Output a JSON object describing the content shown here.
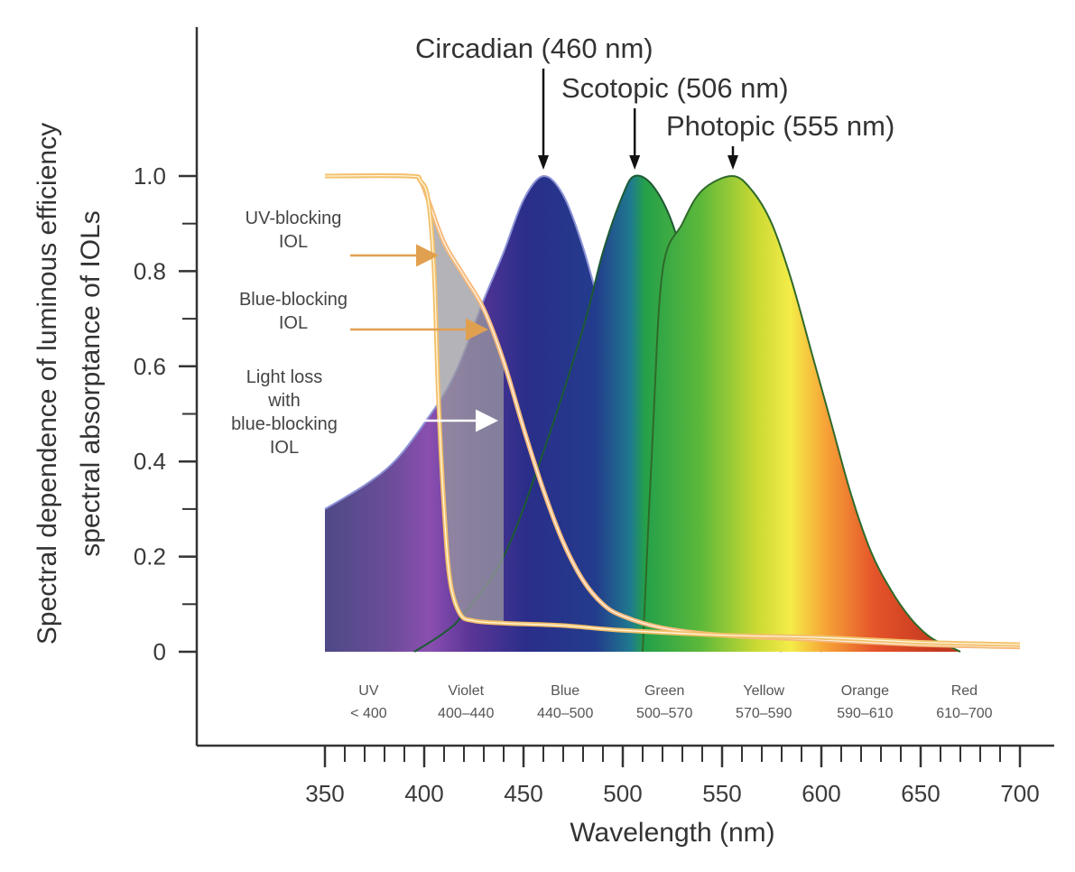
{
  "chart_data": {
    "type": "area",
    "xlabel": "Wavelength (nm)",
    "ylabel_lines": [
      "Spectral dependence of luminous efficiency",
      "spectral absorptance of IOLs"
    ],
    "xlim": [
      350,
      700
    ],
    "ylim": [
      0,
      1.0
    ],
    "x_ticks": [
      350,
      400,
      450,
      500,
      550,
      600,
      650,
      700
    ],
    "x_minor_step": 10,
    "y_ticks": [
      {
        "value": 0,
        "label": "0"
      },
      {
        "value": 0.2,
        "label": "0.2"
      },
      {
        "value": 0.4,
        "label": "0.4"
      },
      {
        "value": 0.6,
        "label": "0.6"
      },
      {
        "value": 0.8,
        "label": "0.8"
      },
      {
        "value": 1.0,
        "label": "1.0"
      }
    ],
    "y_minor_step": 0.1,
    "peaks": [
      {
        "label": "Circadian (460 nm)",
        "peak_nm": 460
      },
      {
        "label": "Scotopic (506 nm)",
        "peak_nm": 506
      },
      {
        "label": "Photopic (555 nm)",
        "peak_nm": 555
      }
    ],
    "series": [
      {
        "id": "circadian",
        "points": [
          [
            350,
            0.3
          ],
          [
            370,
            0.35
          ],
          [
            385,
            0.4
          ],
          [
            400,
            0.48
          ],
          [
            415,
            0.58
          ],
          [
            430,
            0.74
          ],
          [
            440,
            0.84
          ],
          [
            450,
            0.95
          ],
          [
            460,
            1.0
          ],
          [
            470,
            0.96
          ],
          [
            480,
            0.85
          ],
          [
            490,
            0.7
          ],
          [
            500,
            0.55
          ],
          [
            510,
            0.4
          ],
          [
            520,
            0.28
          ],
          [
            530,
            0.18
          ],
          [
            540,
            0.12
          ],
          [
            550,
            0.07
          ],
          [
            560,
            0.04
          ],
          [
            570,
            0.02
          ],
          [
            580,
            0.0
          ]
        ]
      },
      {
        "id": "scotopic",
        "points": [
          [
            395,
            0.0
          ],
          [
            410,
            0.04
          ],
          [
            420,
            0.08
          ],
          [
            440,
            0.2
          ],
          [
            460,
            0.42
          ],
          [
            480,
            0.68
          ],
          [
            490,
            0.84
          ],
          [
            500,
            0.96
          ],
          [
            506,
            1.0
          ],
          [
            515,
            0.98
          ],
          [
            525,
            0.9
          ],
          [
            535,
            0.75
          ],
          [
            545,
            0.58
          ],
          [
            555,
            0.42
          ],
          [
            565,
            0.28
          ],
          [
            575,
            0.17
          ],
          [
            585,
            0.09
          ],
          [
            595,
            0.03
          ],
          [
            600,
            0.0
          ]
        ]
      },
      {
        "id": "photopic",
        "points": [
          [
            510,
            0.0
          ],
          [
            515,
            0.45
          ],
          [
            520,
            0.8
          ],
          [
            530,
            0.9
          ],
          [
            540,
            0.97
          ],
          [
            555,
            1.0
          ],
          [
            565,
            0.97
          ],
          [
            575,
            0.9
          ],
          [
            585,
            0.78
          ],
          [
            595,
            0.63
          ],
          [
            605,
            0.48
          ],
          [
            615,
            0.33
          ],
          [
            625,
            0.21
          ],
          [
            635,
            0.13
          ],
          [
            645,
            0.07
          ],
          [
            655,
            0.03
          ],
          [
            665,
            0.01
          ],
          [
            670,
            0.0
          ]
        ]
      },
      {
        "id": "uv-blocking-iol",
        "points": [
          [
            350,
            1.0
          ],
          [
            392,
            1.0
          ],
          [
            398,
            0.99
          ],
          [
            402,
            0.95
          ],
          [
            405,
            0.8
          ],
          [
            407,
            0.55
          ],
          [
            410,
            0.3
          ],
          [
            413,
            0.15
          ],
          [
            418,
            0.08
          ],
          [
            425,
            0.065
          ],
          [
            440,
            0.06
          ],
          [
            470,
            0.055
          ],
          [
            500,
            0.045
          ],
          [
            550,
            0.035
          ],
          [
            600,
            0.03
          ],
          [
            650,
            0.02
          ],
          [
            700,
            0.015
          ]
        ]
      },
      {
        "id": "blue-blocking-iol",
        "points": [
          [
            350,
            1.0
          ],
          [
            392,
            1.0
          ],
          [
            398,
            0.99
          ],
          [
            402,
            0.95
          ],
          [
            410,
            0.86
          ],
          [
            420,
            0.79
          ],
          [
            430,
            0.72
          ],
          [
            440,
            0.61
          ],
          [
            450,
            0.47
          ],
          [
            460,
            0.34
          ],
          [
            470,
            0.23
          ],
          [
            480,
            0.15
          ],
          [
            490,
            0.1
          ],
          [
            500,
            0.075
          ],
          [
            520,
            0.05
          ],
          [
            550,
            0.035
          ],
          [
            600,
            0.025
          ],
          [
            650,
            0.015
          ],
          [
            700,
            0.01
          ]
        ]
      }
    ],
    "annotations": [
      {
        "lines": [
          "UV-blocking",
          "IOL"
        ],
        "arrow_to": [
          405,
          0.84
        ]
      },
      {
        "lines": [
          "Blue-blocking",
          "IOL"
        ],
        "arrow_to": [
          430,
          0.68
        ]
      },
      {
        "lines": [
          "Light loss",
          "with",
          "blue-blocking",
          "IOL"
        ],
        "arrow_to": [
          435,
          0.5
        ]
      }
    ],
    "bands": [
      {
        "name": "UV",
        "range": "< 400",
        "center_nm": 372
      },
      {
        "name": "Violet",
        "range": "400–440",
        "center_nm": 421
      },
      {
        "name": "Blue",
        "range": "440–500",
        "center_nm": 471
      },
      {
        "name": "Green",
        "range": "500–570",
        "center_nm": 521
      },
      {
        "name": "Yellow",
        "range": "570–590",
        "center_nm": 571
      },
      {
        "name": "Orange",
        "range": "590–610",
        "center_nm": 622
      },
      {
        "name": "Red",
        "range": "610–700",
        "center_nm": 672
      }
    ]
  }
}
